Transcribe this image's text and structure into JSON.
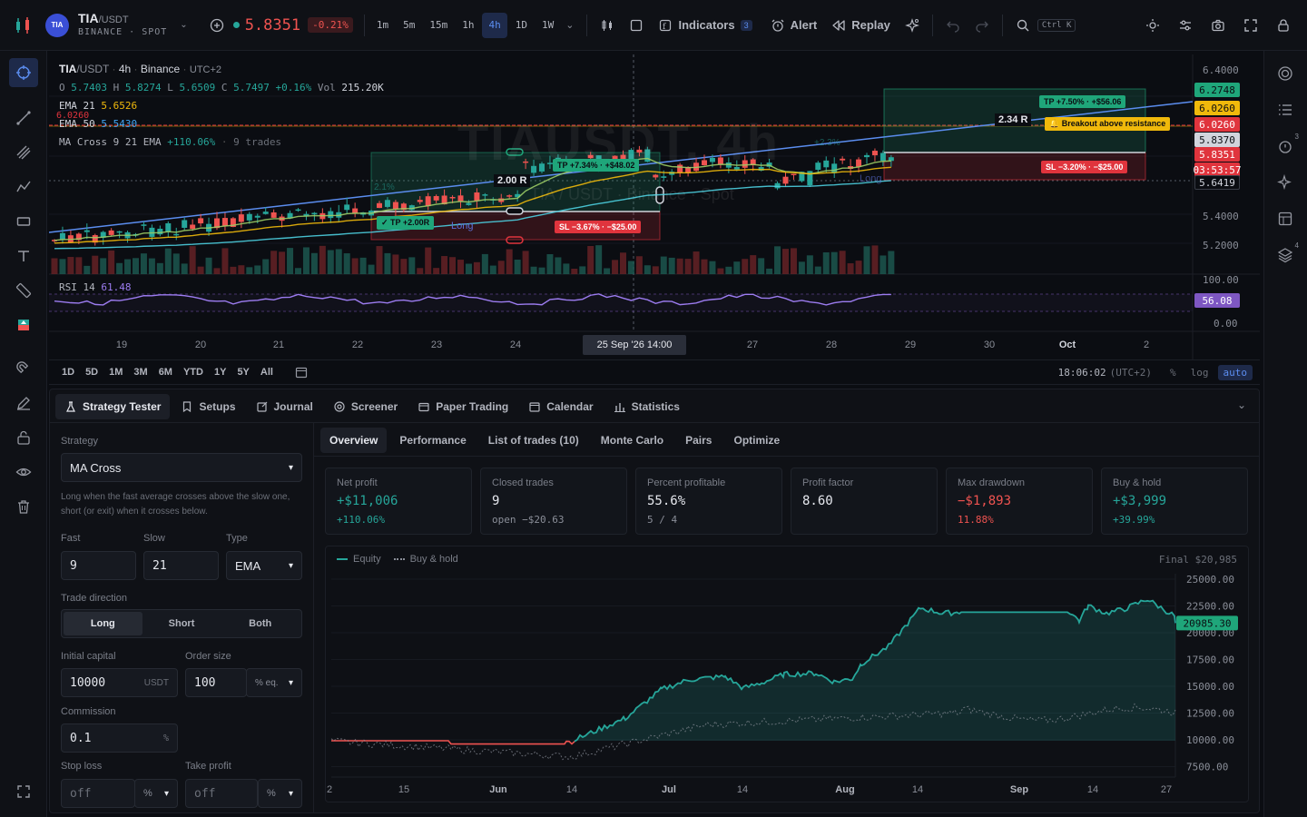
{
  "symbol": {
    "base": "TIA",
    "quote": "/USDT",
    "exchange": "BINANCE · SPOT",
    "logo": "TIA",
    "price": "5.8351",
    "change": "-0.21%"
  },
  "timeframes": [
    {
      "label": "1m",
      "active": false
    },
    {
      "label": "5m",
      "active": false
    },
    {
      "label": "15m",
      "active": false
    },
    {
      "label": "1h",
      "active": false
    },
    {
      "label": "4h",
      "active": true
    },
    {
      "label": "1D",
      "active": false
    },
    {
      "label": "1W",
      "active": false
    }
  ],
  "toolbar": {
    "indicators": "Indicators",
    "indicators_count": "3",
    "alert": "Alert",
    "replay": "Replay",
    "search_shortcut": "Ctrl K"
  },
  "legend": {
    "pair": "TIA",
    "quote": "/USDT",
    "interval": "4h",
    "exchange": "Binance",
    "tz": "UTC+2",
    "ohlc": [
      {
        "k": "O",
        "v": "5.7403"
      },
      {
        "k": "H",
        "v": "5.8274"
      },
      {
        "k": "L",
        "v": "5.6509"
      },
      {
        "k": "C",
        "v": "5.7497"
      }
    ],
    "chg": "+0.16%",
    "vol_label": "Vol",
    "vol": "215.20K",
    "ema21_label": "EMA 21",
    "ema21": "5.6526",
    "ema50_label": "EMA 50",
    "ema50": "5.5430",
    "strategy_label": "MA Cross 9 21 EMA",
    "strategy_pnl": "+110.06%",
    "strategy_trades": "9 trades"
  },
  "watermark": {
    "main": "TIAUSDT, 4h",
    "sub": "TIA / USDT · Binance · Spot"
  },
  "chart": {
    "resistance": "6.0260",
    "breakout_note": "Breakout above resistance",
    "trade1": {
      "r": "2.00 R",
      "tp_hit": "✓ TP +2.00R",
      "tp": "TP +7.34% · +$48.02",
      "sl": "SL −3.67% · −$25.00",
      "side": "Long",
      "pct": "2.1%"
    },
    "trade2": {
      "r": "2.34 R",
      "tp": "TP +7.50% · +$56.06",
      "sl": "SL −3.20% · −$25.00",
      "side": "Long",
      "pct": "+2.3%"
    }
  },
  "price_axis": [
    "6.4000",
    "5.4000",
    "5.2000"
  ],
  "price_tags": [
    {
      "v": "6.2748",
      "bg": "#1fa67a",
      "fg": "#0b0d12"
    },
    {
      "v": "6.0260",
      "bg": "#f0b90b",
      "fg": "#0b0d12"
    },
    {
      "v": "6.0260",
      "bg": "#e0343d",
      "fg": "#ffffff"
    },
    {
      "v": "5.8370",
      "bg": "#d1d4dc",
      "fg": "#0b0d12"
    },
    {
      "v": "5.8351",
      "bg": "#e0343d",
      "fg": "#ffffff"
    },
    {
      "v": "03:53:57",
      "bg": "#e0343d",
      "fg": "#ffffff"
    },
    {
      "v": "5.6419",
      "bg": "#0b0d12",
      "fg": "#d1d4dc"
    }
  ],
  "rsi": {
    "label": "RSI 14",
    "value": "61.48",
    "tag": "56.08",
    "top": "100.00",
    "bottom": "0.00"
  },
  "time_axis": [
    "19",
    "20",
    "21",
    "22",
    "23",
    "24",
    "27",
    "28",
    "29",
    "30",
    "Oct",
    "2"
  ],
  "crosshair_time": "25 Sep '26  14:00",
  "ranges": [
    "1D",
    "5D",
    "1M",
    "3M",
    "6M",
    "YTD",
    "1Y",
    "5Y",
    "All"
  ],
  "clock": "18:06:02",
  "clock_tz": "(UTC+2)",
  "scale_opts": {
    "pct": "%",
    "log": "log",
    "auto": "auto"
  },
  "panel_tabs": [
    {
      "label": "Strategy Tester",
      "icon": "flask-icon",
      "active": true
    },
    {
      "label": "Setups",
      "icon": "bookmark-icon",
      "active": false
    },
    {
      "label": "Journal",
      "icon": "edit-icon",
      "active": false
    },
    {
      "label": "Screener",
      "icon": "radar-icon",
      "active": false
    },
    {
      "label": "Paper Trading",
      "icon": "wallet-icon",
      "active": false
    },
    {
      "label": "Calendar",
      "icon": "calendar-icon",
      "active": false
    },
    {
      "label": "Statistics",
      "icon": "bars-icon",
      "active": false
    }
  ],
  "strategy": {
    "label": "Strategy",
    "value": "MA Cross",
    "desc": "Long when the fast average crosses above the slow one, short (or exit) when it crosses below.",
    "fast_label": "Fast",
    "fast": "9",
    "slow_label": "Slow",
    "slow": "21",
    "type_label": "Type",
    "type": "EMA",
    "dir_label": "Trade direction",
    "dirs": [
      "Long",
      "Short",
      "Both"
    ],
    "capital_label": "Initial capital",
    "capital": "10000",
    "capital_unit": "USDT",
    "order_label": "Order size",
    "order": "100",
    "order_unit": "% eq.",
    "comm_label": "Commission",
    "comm": "0.1",
    "comm_unit": "%",
    "sl_label": "Stop loss",
    "sl": "off",
    "sl_unit": "%",
    "tp_label": "Take profit",
    "tp": "off",
    "tp_unit": "%"
  },
  "sub_tabs": [
    {
      "label": "Overview",
      "active": true
    },
    {
      "label": "Performance",
      "active": false
    },
    {
      "label": "List of trades (10)",
      "active": false
    },
    {
      "label": "Monte Carlo",
      "active": false
    },
    {
      "label": "Pairs",
      "active": false
    },
    {
      "label": "Optimize",
      "active": false
    }
  ],
  "stats": [
    {
      "title": "Net profit",
      "value": "+$11,006",
      "sub": "+110.06%",
      "color": "#26a69a",
      "subcolor": "#26a69a"
    },
    {
      "title": "Closed trades",
      "value": "9",
      "sub": "open −$20.63",
      "color": "#e6e8ee",
      "subcolor": "#8a8e98"
    },
    {
      "title": "Percent profitable",
      "value": "55.6%",
      "sub": "5 / 4",
      "color": "#e6e8ee",
      "subcolor": "#8a8e98"
    },
    {
      "title": "Profit factor",
      "value": "8.60",
      "sub": "",
      "color": "#e6e8ee",
      "subcolor": "#8a8e98"
    },
    {
      "title": "Max drawdown",
      "value": "−$1,893",
      "sub": "11.88%",
      "color": "#ef5350",
      "subcolor": "#ef5350"
    },
    {
      "title": "Buy & hold",
      "value": "+$3,999",
      "sub": "+39.99%",
      "color": "#26a69a",
      "subcolor": "#26a69a"
    }
  ],
  "equity": {
    "legend_equity": "Equity",
    "legend_bh": "Buy & hold",
    "final": "Final $20,985",
    "tag": "20985.30",
    "y_ticks": [
      "25000.00",
      "22500.00",
      "20000.00",
      "17500.00",
      "15000.00",
      "12500.00",
      "10000.00",
      "7500.00"
    ],
    "x_ticks": [
      "2",
      "15",
      "Jun",
      "14",
      "Jul",
      "14",
      "Aug",
      "14",
      "Sep",
      "14",
      "27"
    ]
  },
  "chart_data": [
    {
      "type": "line",
      "title": "",
      "series": [
        {
          "name": "Equity"
        },
        {
          "name": "Buy & hold"
        }
      ],
      "final": 20985.3,
      "ylim": [
        7500,
        25000
      ],
      "x": [
        "2",
        "15",
        "Jun",
        "14",
        "Jul",
        "14",
        "Aug",
        "14",
        "Sep",
        "14",
        "27"
      ]
    }
  ]
}
